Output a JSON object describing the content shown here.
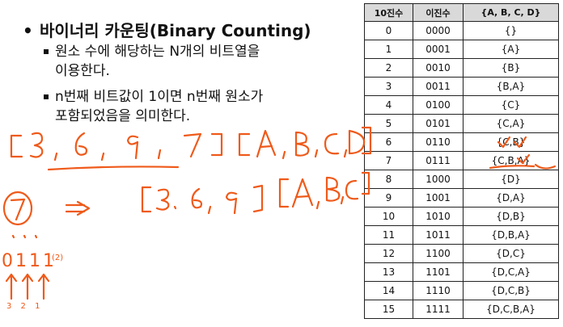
{
  "slide": {
    "heading": "바이너리 카운팅(Binary Counting)",
    "points": [
      "원소 수에 해당하는 N개의 비트열을",
      "이용한다.",
      "n번째 비트값이 1이면 n번째 원소가",
      "포함되었음을 의미한다."
    ]
  },
  "table": {
    "headers": [
      "10진수",
      "이진수",
      "{A, B, C, D}"
    ],
    "rows": [
      [
        "0",
        "0000",
        "{}"
      ],
      [
        "1",
        "0001",
        "{A}"
      ],
      [
        "2",
        "0010",
        "{B}"
      ],
      [
        "3",
        "0011",
        "{B,A}"
      ],
      [
        "4",
        "0100",
        "{C}"
      ],
      [
        "5",
        "0101",
        "{C,A}"
      ],
      [
        "6",
        "0110",
        "{C,B}"
      ],
      [
        "7",
        "0111",
        "{C,B,A}"
      ],
      [
        "8",
        "1000",
        "{D}"
      ],
      [
        "9",
        "1001",
        "{D,A}"
      ],
      [
        "10",
        "1010",
        "{D,B}"
      ],
      [
        "11",
        "1011",
        "{D,B,A}"
      ],
      [
        "12",
        "1100",
        "{D,C}"
      ],
      [
        "13",
        "1101",
        "{D,C,A}"
      ],
      [
        "14",
        "1110",
        "{D,C,B}"
      ],
      [
        "15",
        "1111",
        "{D,C,B,A}"
      ]
    ]
  },
  "ink": {
    "color": "#ef5a1a",
    "top_array": "[3, 6, 9, 7] [A, B, C, D]",
    "circled_number": "7",
    "arrow": "=>",
    "mid_array": "[3. 6, 9] [A, B, C]",
    "bits": "0111",
    "bits_note": "(2)",
    "bit_positions": "3 2 1"
  }
}
